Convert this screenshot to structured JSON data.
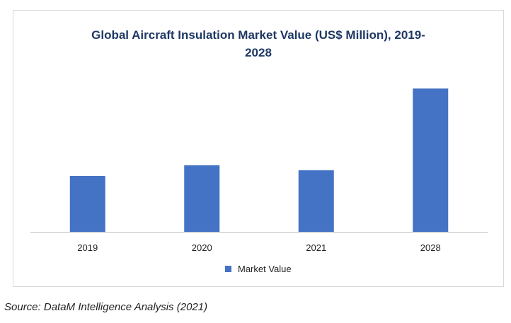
{
  "title_line1": "Global Aircraft Insulation Market Value (US$ Million), 2019-",
  "title_line2": "2028",
  "source": "Source: DataM Intelligence Analysis (2021)",
  "chart_data": {
    "type": "bar",
    "categories": [
      "2019",
      "2020",
      "2021",
      "2028"
    ],
    "series": [
      {
        "name": "Market Value",
        "values": [
          3.9,
          4.65,
          4.3,
          10.0
        ],
        "color": "#4472c4"
      }
    ],
    "ylim": [
      0,
      11
    ],
    "grid": false,
    "legend": "bottom",
    "title": "Global Aircraft Insulation Market Value (US$ Million), 2019-2028",
    "xlabel": "",
    "ylabel": ""
  }
}
